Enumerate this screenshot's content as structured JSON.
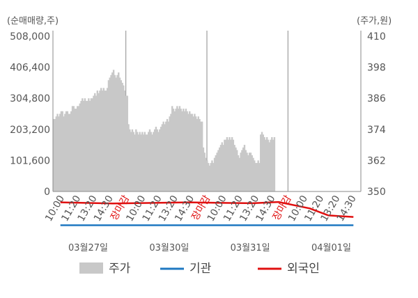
{
  "chart_data": {
    "type": "line",
    "left_axis": {
      "label": "(순매매량,주)",
      "ticks": [
        "508,000",
        "406,400",
        "304,800",
        "203,200",
        "101,600",
        "0"
      ],
      "tick_values": [
        508000,
        406400,
        304800,
        203200,
        101600,
        0
      ],
      "range": [
        0,
        508000
      ]
    },
    "right_axis": {
      "label": "(주가,원)",
      "ticks": [
        "410",
        "398",
        "386",
        "374",
        "362",
        "350"
      ],
      "tick_values": [
        410,
        398,
        386,
        374,
        362,
        350
      ],
      "range": [
        350,
        410
      ]
    },
    "x_tick_labels": [
      "10:00",
      "11:20",
      "13:20",
      "14:30",
      "장마감",
      "10:00",
      "11:20",
      "13:20",
      "14:30",
      "장마감",
      "10:00",
      "11:20",
      "13:20",
      "14:30",
      "장마감",
      "10:00",
      "11:20",
      "13:20",
      "14:30"
    ],
    "closing_label": "장마감",
    "dates": [
      "03월27일",
      "03월30일",
      "03월31일",
      "04월01일"
    ],
    "grid": true,
    "legend_position": "bottom",
    "series": [
      {
        "name": "주가",
        "kind": "area",
        "axis": "right",
        "color": "#c8c8c8",
        "values": [
          [
            0,
            378
          ],
          [
            1,
            378
          ],
          [
            2,
            379
          ],
          [
            3,
            380
          ],
          [
            4,
            379
          ],
          [
            5,
            380
          ],
          [
            6,
            381
          ],
          [
            7,
            381
          ],
          [
            8,
            379
          ],
          [
            9,
            380
          ],
          [
            10,
            381
          ],
          [
            11,
            381
          ],
          [
            12,
            380
          ],
          [
            13,
            380
          ],
          [
            14,
            381
          ],
          [
            15,
            383
          ],
          [
            16,
            383
          ],
          [
            17,
            382
          ],
          [
            18,
            382
          ],
          [
            19,
            383
          ],
          [
            20,
            383
          ],
          [
            21,
            384
          ],
          [
            22,
            385
          ],
          [
            23,
            386
          ],
          [
            24,
            385
          ],
          [
            25,
            386
          ],
          [
            26,
            385
          ],
          [
            27,
            385
          ],
          [
            28,
            386
          ],
          [
            29,
            385
          ],
          [
            30,
            386
          ],
          [
            31,
            386
          ],
          [
            32,
            387
          ],
          [
            33,
            388
          ],
          [
            34,
            387
          ],
          [
            35,
            389
          ],
          [
            36,
            388
          ],
          [
            37,
            389
          ],
          [
            38,
            390
          ],
          [
            39,
            389
          ],
          [
            40,
            390
          ],
          [
            41,
            389
          ],
          [
            42,
            389
          ],
          [
            43,
            390
          ],
          [
            44,
            393
          ],
          [
            45,
            394
          ],
          [
            46,
            395
          ],
          [
            47,
            396
          ],
          [
            48,
            397
          ],
          [
            49,
            395
          ],
          [
            50,
            394
          ],
          [
            51,
            395
          ],
          [
            52,
            396
          ],
          [
            53,
            394
          ],
          [
            54,
            393
          ],
          [
            55,
            392
          ],
          [
            56,
            391
          ],
          [
            57,
            389
          ],
          [
            58,
            387
          ],
          [
            59,
            387
          ],
          [
            60,
            376
          ],
          [
            61,
            374
          ],
          [
            62,
            373
          ],
          [
            63,
            374
          ],
          [
            64,
            373
          ],
          [
            65,
            372
          ],
          [
            66,
            374
          ],
          [
            67,
            373
          ],
          [
            68,
            372
          ],
          [
            69,
            373
          ],
          [
            70,
            372
          ],
          [
            71,
            373
          ],
          [
            72,
            372
          ],
          [
            73,
            373
          ],
          [
            74,
            372
          ],
          [
            75,
            372
          ],
          [
            76,
            373
          ],
          [
            77,
            374
          ],
          [
            78,
            373
          ],
          [
            79,
            372
          ],
          [
            80,
            373
          ],
          [
            81,
            374
          ],
          [
            82,
            375
          ],
          [
            83,
            374
          ],
          [
            84,
            373
          ],
          [
            85,
            374
          ],
          [
            86,
            375
          ],
          [
            87,
            376
          ],
          [
            88,
            377
          ],
          [
            89,
            376
          ],
          [
            90,
            377
          ],
          [
            91,
            378
          ],
          [
            92,
            377
          ],
          [
            93,
            379
          ],
          [
            94,
            380
          ],
          [
            95,
            383
          ],
          [
            96,
            382
          ],
          [
            97,
            381
          ],
          [
            98,
            382
          ],
          [
            99,
            383
          ],
          [
            100,
            382
          ],
          [
            101,
            383
          ],
          [
            102,
            382
          ],
          [
            103,
            381
          ],
          [
            104,
            382
          ],
          [
            105,
            381
          ],
          [
            106,
            382
          ],
          [
            107,
            381
          ],
          [
            108,
            380
          ],
          [
            109,
            381
          ],
          [
            110,
            380
          ],
          [
            111,
            380
          ],
          [
            112,
            379
          ],
          [
            113,
            380
          ],
          [
            114,
            379
          ],
          [
            115,
            378
          ],
          [
            116,
            379
          ],
          [
            117,
            378
          ],
          [
            118,
            377
          ],
          [
            119,
            377
          ],
          [
            120,
            367
          ],
          [
            121,
            365
          ],
          [
            122,
            363
          ],
          [
            123,
            362
          ],
          [
            124,
            361
          ],
          [
            125,
            360
          ],
          [
            126,
            361
          ],
          [
            127,
            362
          ],
          [
            128,
            361
          ],
          [
            129,
            363
          ],
          [
            130,
            364
          ],
          [
            131,
            365
          ],
          [
            132,
            366
          ],
          [
            133,
            367
          ],
          [
            134,
            368
          ],
          [
            135,
            369
          ],
          [
            136,
            368
          ],
          [
            137,
            370
          ],
          [
            138,
            370
          ],
          [
            139,
            371
          ],
          [
            140,
            370
          ],
          [
            141,
            371
          ],
          [
            142,
            370
          ],
          [
            143,
            371
          ],
          [
            144,
            370
          ],
          [
            145,
            368
          ],
          [
            146,
            367
          ],
          [
            147,
            366
          ],
          [
            148,
            364
          ],
          [
            149,
            363
          ],
          [
            150,
            365
          ],
          [
            151,
            366
          ],
          [
            152,
            367
          ],
          [
            153,
            368
          ],
          [
            154,
            366
          ],
          [
            155,
            365
          ],
          [
            156,
            364
          ],
          [
            157,
            365
          ],
          [
            158,
            365
          ],
          [
            159,
            364
          ],
          [
            160,
            363
          ],
          [
            161,
            362
          ],
          [
            162,
            361
          ],
          [
            163,
            361
          ],
          [
            164,
            362
          ],
          [
            165,
            361
          ],
          [
            166,
            372
          ],
          [
            167,
            373
          ],
          [
            168,
            372
          ],
          [
            169,
            371
          ],
          [
            170,
            370
          ],
          [
            171,
            371
          ],
          [
            172,
            370
          ],
          [
            173,
            369
          ],
          [
            174,
            370
          ],
          [
            175,
            371
          ],
          [
            176,
            370
          ],
          [
            177,
            371
          ]
        ]
      },
      {
        "name": "기관",
        "kind": "line",
        "axis": "left",
        "color": "#1f78c1",
        "values": [
          [
            6,
            8000
          ],
          [
            48,
            8000
          ],
          [
            109,
            8000
          ],
          [
            136,
            8000
          ],
          [
            160,
            8000
          ],
          [
            181,
            8000
          ],
          [
            206,
            8000
          ],
          [
            221,
            8000
          ],
          [
            241,
            8000
          ]
        ]
      },
      {
        "name": "외국인",
        "kind": "line",
        "axis": "left",
        "color": "#e01010",
        "values": [
          [
            6,
            83000
          ],
          [
            48,
            79000
          ],
          [
            109,
            83000
          ],
          [
            136,
            81000
          ],
          [
            160,
            80000
          ],
          [
            181,
            84000
          ],
          [
            206,
            63000
          ],
          [
            221,
            40000
          ],
          [
            241,
            35000
          ]
        ]
      }
    ]
  }
}
